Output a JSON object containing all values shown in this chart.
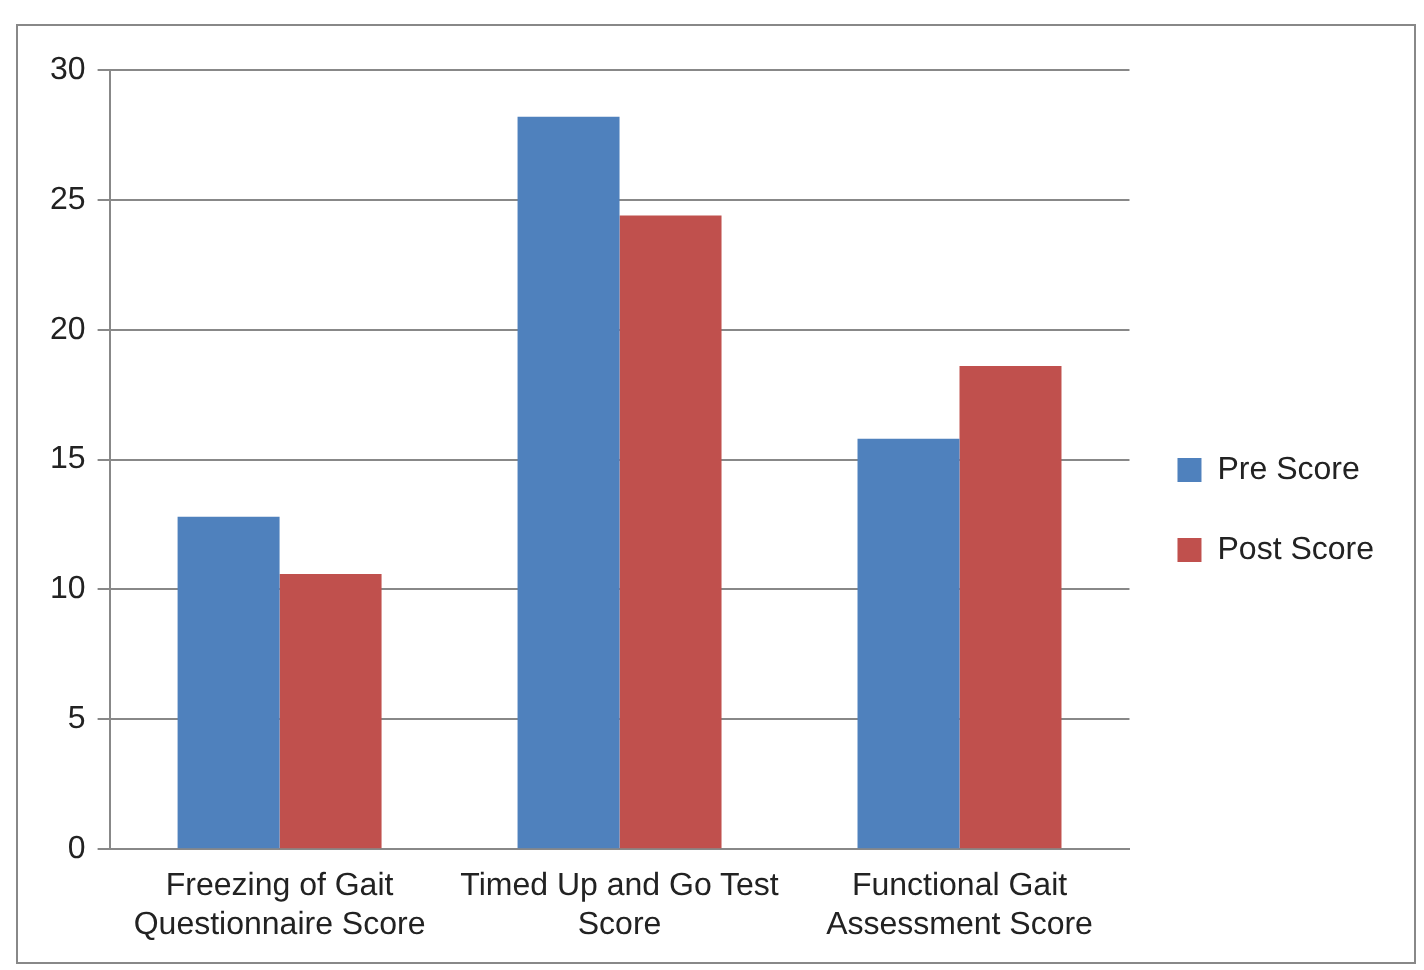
{
  "chart_data": {
    "type": "bar",
    "categories": [
      "Freezing of Gait Questionnaire Score",
      "Timed Up and Go Test Score",
      "Functional Gait Assessment Score"
    ],
    "series": [
      {
        "name": "Pre Score",
        "color": "#4f81bd",
        "values": [
          12.8,
          28.2,
          15.8
        ]
      },
      {
        "name": "Post Score",
        "color": "#c0504d",
        "values": [
          10.6,
          24.4,
          18.6
        ]
      }
    ],
    "ylim": [
      0,
      30
    ],
    "yticks": [
      0,
      5,
      10,
      15,
      20,
      25,
      30
    ],
    "grid": "y",
    "legend": "right"
  }
}
